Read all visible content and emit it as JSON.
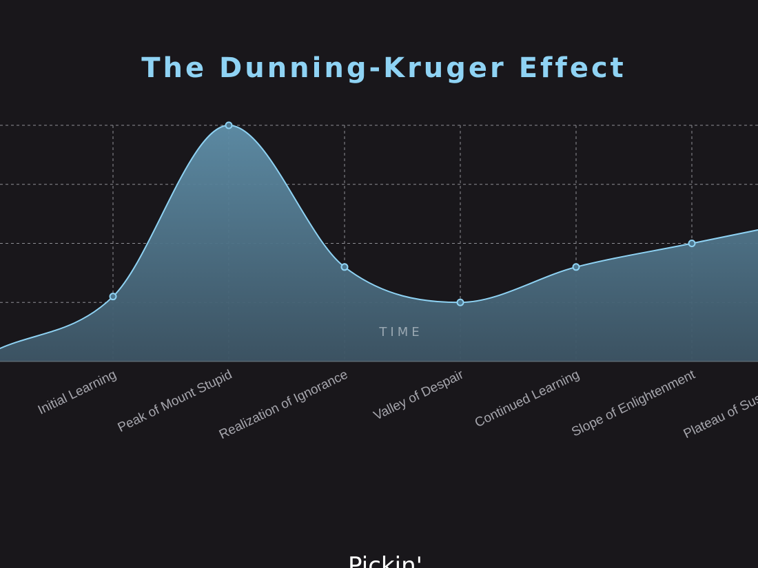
{
  "chart_data": {
    "type": "area",
    "title": "The Dunning-Kruger Effect",
    "xlabel": "TIME",
    "ylabel": "",
    "categories": [
      "",
      "Initial Learning",
      "Peak of Mount Stupid",
      "Realization of Ignorance",
      "Valley of Despair",
      "Continued Learning",
      "Slope of Enlightenment",
      "Plateau of Sustainability"
    ],
    "series": [
      {
        "values": [
          0.4,
          2.2,
          8.0,
          3.2,
          2.0,
          3.2,
          4.0,
          4.8
        ]
      }
    ],
    "ylim": [
      0,
      8
    ],
    "grid": true,
    "legend": "none",
    "colors": {
      "background": "#19171b",
      "line": "#8fd3f4",
      "fill_top": "#5f8fa9",
      "fill_bottom": "#3d5565",
      "grid": "#8f8f95",
      "title": "#8fd3f4"
    }
  },
  "footer": {
    "caption": "Pickin'"
  }
}
